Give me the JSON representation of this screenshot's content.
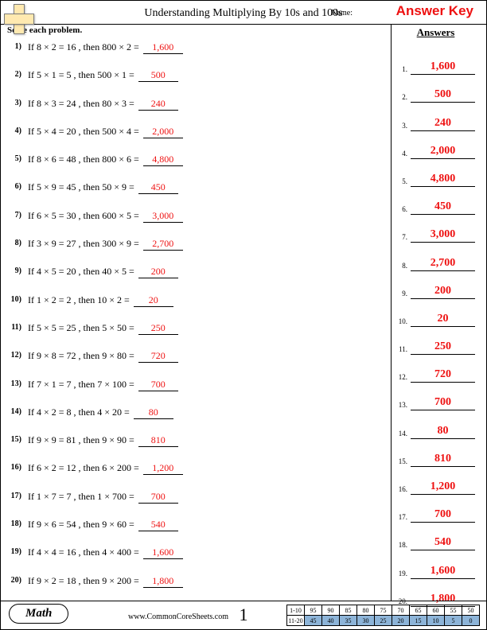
{
  "header": {
    "title": "Understanding Multiplying By 10s and 100s",
    "name_label": "Name:",
    "answer_key": "Answer Key"
  },
  "instructions": "Solve each problem.",
  "answers_heading": "Answers",
  "colors": {
    "answer": "#ee1111",
    "border": "#000000",
    "score_shade": "#8db4d8",
    "plus_fill": "#ffe9b0"
  },
  "problems": [
    {
      "n": "1)",
      "base": "8 × 2 = 16",
      "ext": "800 × 2 =",
      "ans": "1,600"
    },
    {
      "n": "2)",
      "base": "5 × 1 = 5",
      "ext": "500 × 1 =",
      "ans": "500"
    },
    {
      "n": "3)",
      "base": "8 × 3 = 24",
      "ext": "80 × 3 =",
      "ans": "240"
    },
    {
      "n": "4)",
      "base": "5 × 4 = 20",
      "ext": "500 × 4 =",
      "ans": "2,000"
    },
    {
      "n": "5)",
      "base": "8 × 6 = 48",
      "ext": "800 × 6 =",
      "ans": "4,800"
    },
    {
      "n": "6)",
      "base": "5 × 9 = 45",
      "ext": "50 × 9 =",
      "ans": "450"
    },
    {
      "n": "7)",
      "base": "6 × 5 = 30",
      "ext": "600 × 5 =",
      "ans": "3,000"
    },
    {
      "n": "8)",
      "base": "3 × 9 = 27",
      "ext": "300 × 9 =",
      "ans": "2,700"
    },
    {
      "n": "9)",
      "base": "4 × 5 = 20",
      "ext": "40 × 5 =",
      "ans": "200"
    },
    {
      "n": "10)",
      "base": "1 × 2 = 2",
      "ext": "10 × 2 =",
      "ans": "20"
    },
    {
      "n": "11)",
      "base": "5 × 5 = 25",
      "ext": "5 × 50 =",
      "ans": "250"
    },
    {
      "n": "12)",
      "base": "9 × 8 = 72",
      "ext": "9 × 80 =",
      "ans": "720"
    },
    {
      "n": "13)",
      "base": "7 × 1 = 7",
      "ext": "7 × 100 =",
      "ans": "700"
    },
    {
      "n": "14)",
      "base": "4 × 2 = 8",
      "ext": "4 × 20 =",
      "ans": "80"
    },
    {
      "n": "15)",
      "base": "9 × 9 = 81",
      "ext": "9 × 90 =",
      "ans": "810"
    },
    {
      "n": "16)",
      "base": "6 × 2 = 12",
      "ext": "6 × 200 =",
      "ans": "1,200"
    },
    {
      "n": "17)",
      "base": "1 × 7 = 7",
      "ext": "1 × 700 =",
      "ans": "700"
    },
    {
      "n": "18)",
      "base": "9 × 6 = 54",
      "ext": "9 × 60 =",
      "ans": "540"
    },
    {
      "n": "19)",
      "base": "4 × 4 = 16",
      "ext": "4 × 400 =",
      "ans": "1,600"
    },
    {
      "n": "20)",
      "base": "9 × 2 = 18",
      "ext": "9 × 200 =",
      "ans": "1,800"
    }
  ],
  "footer": {
    "subject": "Math",
    "site": "www.CommonCoreSheets.com",
    "page": "1"
  },
  "score_grid": {
    "row1": {
      "label": "1-10",
      "cells": [
        "95",
        "90",
        "85",
        "80",
        "75",
        "70",
        "65",
        "60",
        "55",
        "50"
      ]
    },
    "row2": {
      "label": "11-20",
      "cells": [
        "45",
        "40",
        "35",
        "30",
        "25",
        "20",
        "15",
        "10",
        "5",
        "0"
      ]
    }
  }
}
